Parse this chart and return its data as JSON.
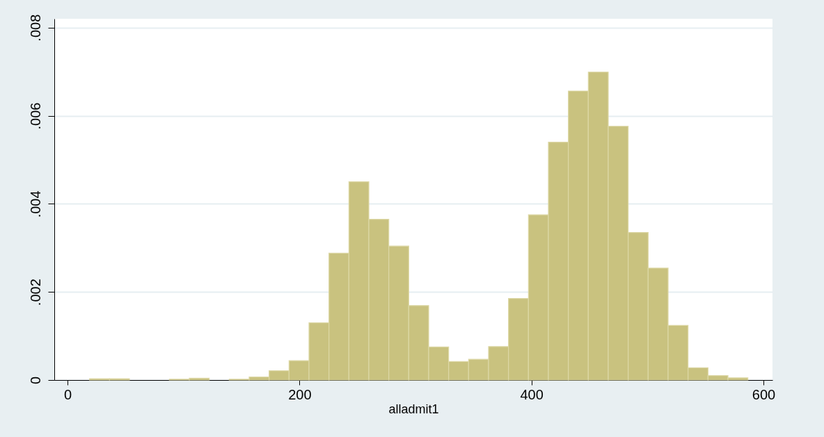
{
  "chart_data": {
    "type": "histogram",
    "xlabel": "alladmit1",
    "color": "#c9c27f",
    "bins": [
      19,
      36.2,
      53.4,
      70.6,
      87.8,
      105,
      122.2,
      139.4,
      156.6,
      173.8,
      191,
      208.2,
      225.4,
      242.6,
      259.8,
      277,
      294.2,
      311.4,
      328.6,
      345.8,
      363,
      380.2,
      397.4,
      414.6,
      431.8,
      449,
      466.2,
      483.4,
      500.6,
      517.8,
      535,
      552.2,
      569.4,
      586.6
    ],
    "values": [
      3e-05,
      3e-05,
      0,
      0,
      2e-05,
      4e-05,
      0,
      2e-05,
      7e-05,
      0.00021,
      0.00044,
      0.0013,
      0.00288,
      0.0045,
      0.00365,
      0.00304,
      0.00169,
      0.00075,
      0.00042,
      0.00047,
      0.00076,
      0.00185,
      0.00375,
      0.0054,
      0.00656,
      0.00699,
      0.00576,
      0.00335,
      0.00254,
      0.00124,
      0.00028,
      0.0001,
      5e-05
    ],
    "xlim": [
      -11.4,
      607.8
    ],
    "xticks": [
      0,
      200,
      400,
      600
    ],
    "ylim": [
      0,
      0.0082
    ],
    "yticks": [
      0,
      {
        "value": 0.002,
        "label": ".002"
      },
      {
        "value": 0.004,
        "label": ".004"
      },
      {
        "value": 0.006,
        "label": ".006"
      },
      {
        "value": 0.008,
        "label": ".008"
      }
    ],
    "grid": "y"
  }
}
